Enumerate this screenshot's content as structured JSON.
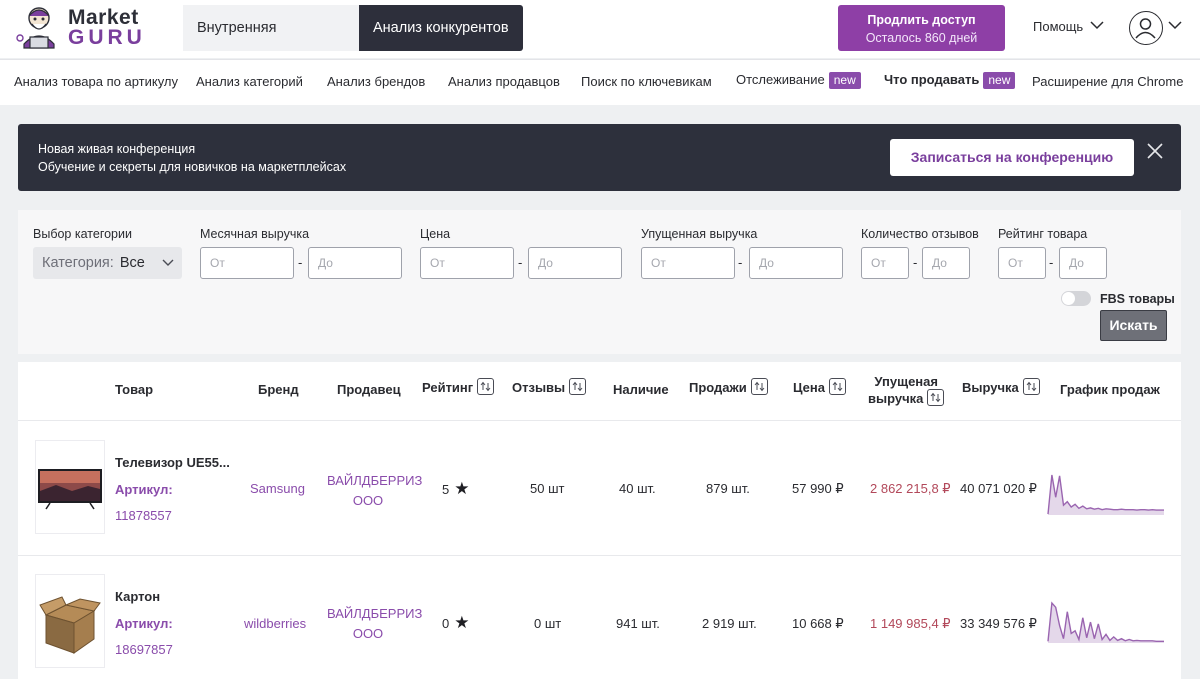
{
  "header": {
    "logo_top": "Market",
    "logo_bottom": "GURU",
    "tabs": [
      {
        "label": "Внутренняя аналитика"
      },
      {
        "label": "Анализ конкурентов"
      }
    ],
    "renew": {
      "label": "Продлить доступ",
      "sub": "Осталось 860 дней"
    },
    "help_label": "Помощь"
  },
  "nav": {
    "items": [
      {
        "label": "Анализ товара по артикулу"
      },
      {
        "label": "Анализ категорий"
      },
      {
        "label": "Анализ брендов"
      },
      {
        "label": "Анализ продавцов"
      },
      {
        "label": "Поиск по ключевикам"
      },
      {
        "label": "Отслеживание",
        "badge": "new"
      },
      {
        "label": "Что продавать",
        "badge": "new"
      },
      {
        "label": "Расширение для Chrome"
      }
    ]
  },
  "banner": {
    "line1": "Новая живая конференция",
    "line2": "Обучение и секреты для новичков на маркетплейсах",
    "button": "Записаться на конференцию"
  },
  "filters": {
    "category_label": "Выбор категории",
    "category_prefix": "Категория:",
    "category_value": "Все",
    "monthly_revenue_label": "Месячная выручка",
    "price_label": "Цена",
    "lost_revenue_label": "Упущенная выручка",
    "reviews_count_label": "Количество отзывов",
    "rating_label": "Рейтинг товара",
    "from_placeholder": "От",
    "to_placeholder": "До",
    "dash": "-",
    "fbs_label": "FBS товары",
    "search_button": "Искать"
  },
  "table": {
    "headers": {
      "product": "Товар",
      "brand": "Бренд",
      "seller": "Продавец",
      "rating": "Рейтинг",
      "reviews": "Отзывы",
      "stock": "Наличие",
      "sales": "Продажи",
      "price": "Цена",
      "lost_1": "Упущеная",
      "lost_2": "выручка",
      "revenue": "Выручка",
      "chart": "График продаж"
    },
    "rows": [
      {
        "name": "Телевизор UE55...",
        "article_label": "Артикул:",
        "article": "11878557",
        "brand": "Samsung",
        "seller_1": "ВАЙЛДБЕРРИЗ",
        "seller_2": "ООО",
        "rating": "5",
        "reviews": "50 шт",
        "stock": "40 шт.",
        "sales": "879 шт.",
        "price": "57 990 ₽",
        "lost": "2 862 215,8 ₽",
        "revenue": "40 071 020 ₽",
        "sparkline": [
          2,
          90,
          40,
          88,
          22,
          30,
          18,
          24,
          15,
          20,
          14,
          16,
          13,
          15,
          12,
          14,
          13,
          12,
          12,
          13,
          12,
          12,
          12,
          11,
          12,
          12,
          11,
          12,
          11,
          11,
          11
        ]
      },
      {
        "name": "Картон",
        "article_label": "Артикул:",
        "article": "18697857",
        "brand": "wildberries",
        "seller_1": "ВАЙЛДБЕРРИЗ",
        "seller_2": "ООО",
        "rating": "0",
        "reviews": "0 шт",
        "stock": "941 шт.",
        "sales": "2 919 шт.",
        "price": "10 668 ₽",
        "lost": "1 149 985,4 ₽",
        "revenue": "33 349 576 ₽",
        "sparkline": [
          4,
          92,
          82,
          40,
          10,
          72,
          22,
          28,
          8,
          58,
          12,
          48,
          10,
          44,
          8,
          20,
          6,
          14,
          6,
          10,
          5,
          8,
          5,
          6,
          5,
          5,
          5,
          5,
          4,
          4,
          4
        ]
      }
    ]
  },
  "colors": {
    "accent": "#8e3fa6",
    "dark": "#2d2f3b",
    "lost_revenue": "#b2485a",
    "chart_fill": "#e4d8ea",
    "chart_line": "#9a65b0"
  }
}
